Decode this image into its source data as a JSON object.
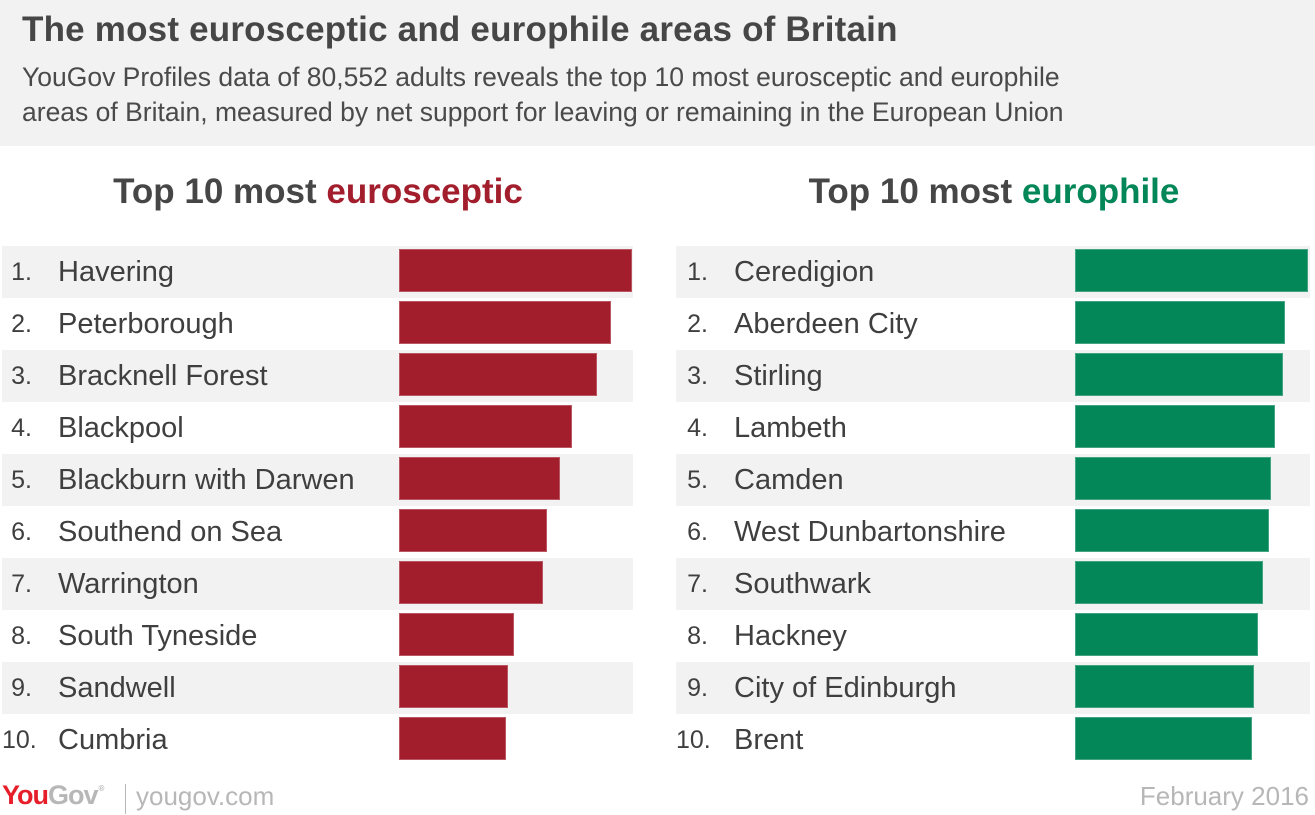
{
  "header": {
    "title": "The most eurosceptic and europhile areas of Britain",
    "subtitle_line1": "YouGov Profiles data of 80,552 adults reveals the top 10 most eurosceptic and europhile",
    "subtitle_line2": "areas of Britain, measured by net support for leaving or remaining in the European Union"
  },
  "colors": {
    "eurosceptic": "#a21e2c",
    "europhile": "#038658",
    "row_shade": "#f2f2f2",
    "header_bg": "#f2f2f2",
    "text": "#3f3f3f",
    "logo_red": "#e61e2a",
    "logo_grey": "#b7b7b7"
  },
  "left_panel": {
    "title_prefix": "Top 10 most ",
    "title_highlight": "eurosceptic",
    "items": [
      {
        "rank": "1.",
        "name": "Havering"
      },
      {
        "rank": "2.",
        "name": "Peterborough"
      },
      {
        "rank": "3.",
        "name": "Bracknell Forest"
      },
      {
        "rank": "4.",
        "name": "Blackpool"
      },
      {
        "rank": "5.",
        "name": "Blackburn with Darwen"
      },
      {
        "rank": "6.",
        "name": "Southend on Sea"
      },
      {
        "rank": "7.",
        "name": "Warrington"
      },
      {
        "rank": "8.",
        "name": "South Tyneside"
      },
      {
        "rank": "9.",
        "name": "Sandwell"
      },
      {
        "rank": "10.",
        "name": "Cumbria"
      }
    ]
  },
  "right_panel": {
    "title_prefix": "Top 10 most ",
    "title_highlight": "europhile",
    "items": [
      {
        "rank": "1.",
        "name": "Ceredigion"
      },
      {
        "rank": "2.",
        "name": "Aberdeen City"
      },
      {
        "rank": "3.",
        "name": "Stirling"
      },
      {
        "rank": "4.",
        "name": "Lambeth"
      },
      {
        "rank": "5.",
        "name": "Camden"
      },
      {
        "rank": "6.",
        "name": "West Dunbartonshire"
      },
      {
        "rank": "7.",
        "name": "Southwark"
      },
      {
        "rank": "8.",
        "name": "Hackney"
      },
      {
        "rank": "9.",
        "name": "City of Edinburgh"
      },
      {
        "rank": "10.",
        "name": "Brent"
      }
    ]
  },
  "footer": {
    "logo_you": "You",
    "logo_gov": "Gov",
    "logo_reg": "®",
    "url": "yougov.com",
    "date": "February 2016"
  },
  "chart_data": [
    {
      "type": "bar",
      "orientation": "horizontal",
      "title": "Top 10 most eurosceptic",
      "categories": [
        "Havering",
        "Peterborough",
        "Bracknell Forest",
        "Blackpool",
        "Blackburn with Darwen",
        "Southend on Sea",
        "Warrington",
        "South Tyneside",
        "Sandwell",
        "Cumbria"
      ],
      "values": [
        233,
        212,
        198,
        173,
        161,
        148,
        144,
        115,
        109,
        107
      ],
      "value_units": "relative bar length (px); no axis or numeric labels shown",
      "color": "#a21e2c",
      "xlabel": "",
      "ylabel": "",
      "grid": false,
      "legend": null
    },
    {
      "type": "bar",
      "orientation": "horizontal",
      "title": "Top 10 most europhile",
      "categories": [
        "Ceredigion",
        "Aberdeen City",
        "Stirling",
        "Lambeth",
        "Camden",
        "West Dunbartonshire",
        "Southwark",
        "Hackney",
        "City of Edinburgh",
        "Brent"
      ],
      "values": [
        233,
        210,
        208,
        200,
        196,
        194,
        188,
        183,
        179,
        177
      ],
      "value_units": "relative bar length (px); no axis or numeric labels shown",
      "color": "#038658",
      "xlabel": "",
      "ylabel": "",
      "grid": false,
      "legend": null
    }
  ]
}
